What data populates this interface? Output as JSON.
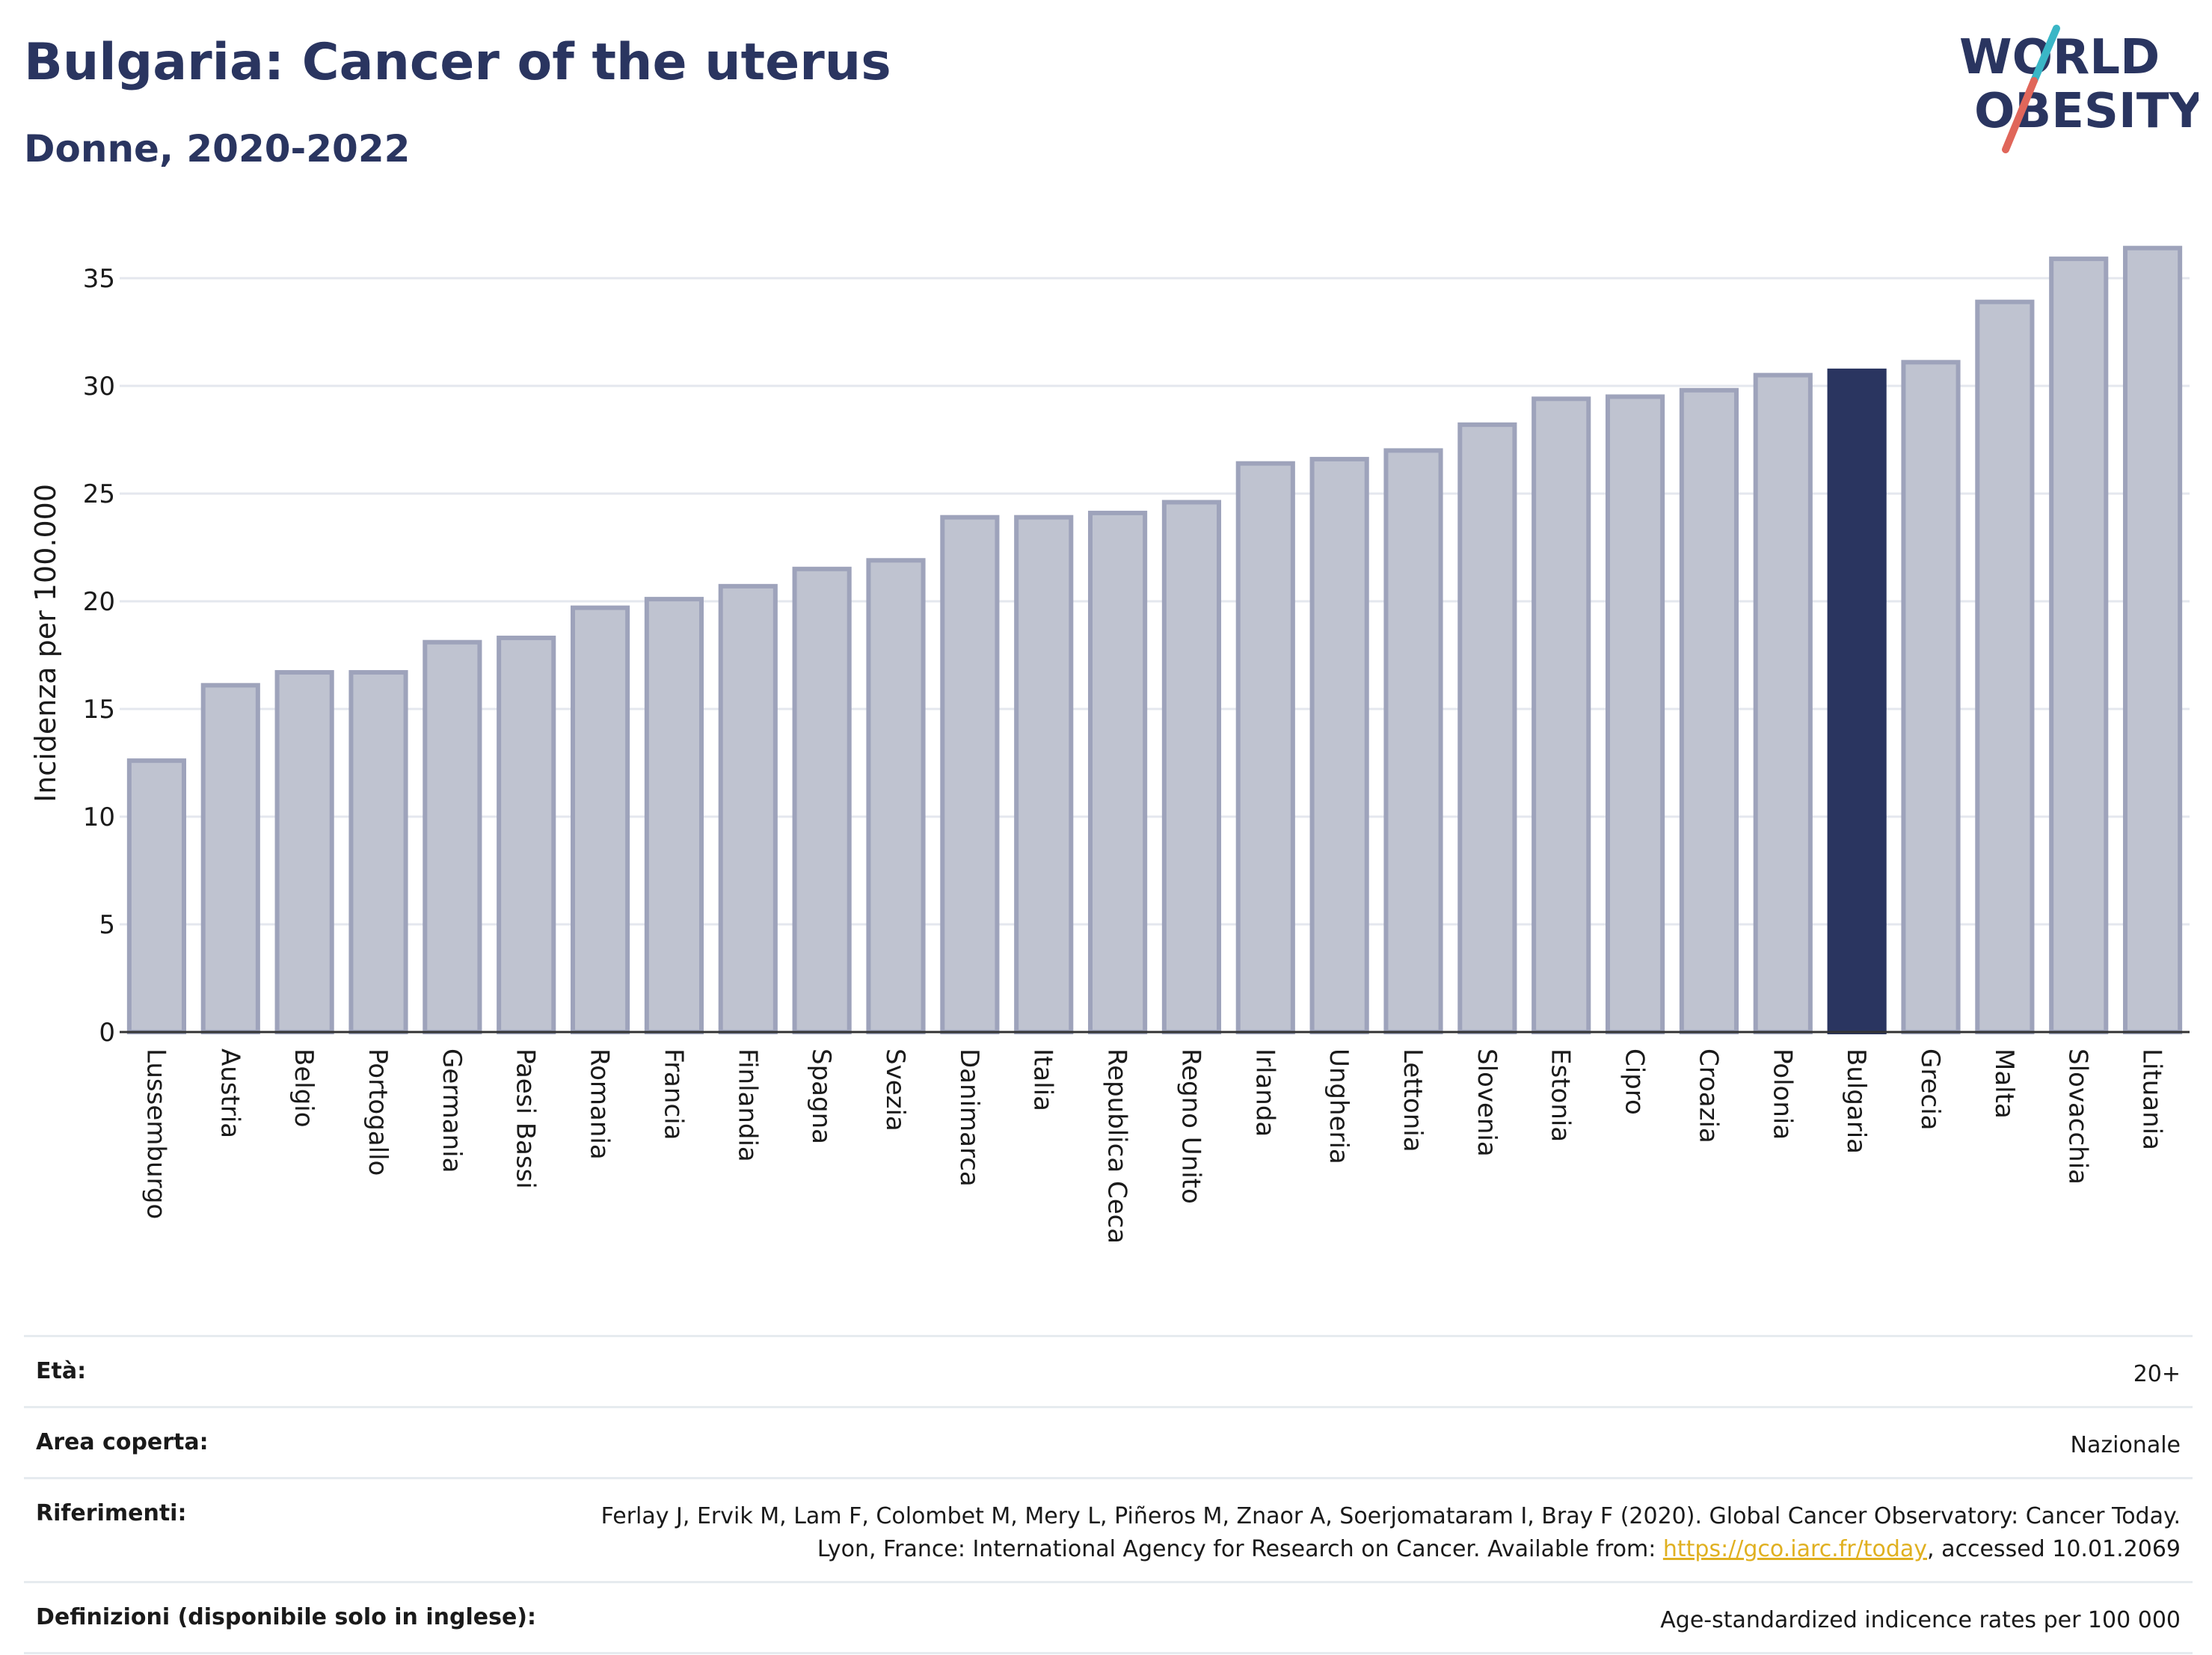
{
  "header": {
    "title": "Bulgaria: Cancer of the uterus",
    "subtitle": "Donne, 2020-2022",
    "logo_line1": "WORLD",
    "logo_line2": "OBESITY"
  },
  "colors": {
    "bar": "#bfc3d0",
    "bar_stroke": "#9ea3bb",
    "highlight": "#2a3560",
    "grid": "#e4e7ee",
    "logo_teal": "#3ab6c6",
    "logo_coral": "#e0665a"
  },
  "chart_data": {
    "type": "bar",
    "title": "Bulgaria: Cancer of the uterus",
    "subtitle": "Donne, 2020-2022",
    "ylabel": "Incidenza per 100.000",
    "xlabel": "",
    "ylim": [
      0,
      37.5
    ],
    "yticks": [
      0,
      5,
      10,
      15,
      20,
      25,
      30,
      35
    ],
    "grid": true,
    "highlight": "Bulgaria",
    "categories": [
      "Lussemburgo",
      "Austria",
      "Belgio",
      "Portogallo",
      "Germania",
      "Paesi Bassi",
      "Romania",
      "Francia",
      "Finlandia",
      "Spagna",
      "Svezia",
      "Danimarca",
      "Italia",
      "Republica Ceca",
      "Regno Unito",
      "Irlanda",
      "Ungheria",
      "Lettonia",
      "Slovenia",
      "Estonia",
      "Cipro",
      "Croazia",
      "Polonia",
      "Bulgaria",
      "Grecia",
      "Malta",
      "Slovacchia",
      "Lituania"
    ],
    "values": [
      12.6,
      16.1,
      16.7,
      16.7,
      18.1,
      18.3,
      19.7,
      20.1,
      20.7,
      21.5,
      21.9,
      23.9,
      23.9,
      24.1,
      24.6,
      26.4,
      26.6,
      27.0,
      28.2,
      29.4,
      29.5,
      29.8,
      30.5,
      30.7,
      31.1,
      33.9,
      35.9,
      36.4
    ]
  },
  "info": {
    "rows": [
      {
        "key": "Età:",
        "value": "20+"
      },
      {
        "key": "Area coperta:",
        "value": "Nazionale"
      },
      {
        "key": "Riferimenti:",
        "value_before": "Ferlay J, Ervik M, Lam F, Colombet M, Mery L, Piñeros M, Znaor A, Soerjomataram I, Bray F (2020). Global Cancer Observatory: Cancer Today. Lyon, France: International Agency for Research on Cancer. Available from: ",
        "link": "https://gco.iarc.fr/today",
        "value_after": ", accessed 10.01.2069"
      },
      {
        "key": "Definizioni (disponibile solo in inglese):",
        "value": "Age-standardized indicence rates per 100 000"
      }
    ]
  }
}
